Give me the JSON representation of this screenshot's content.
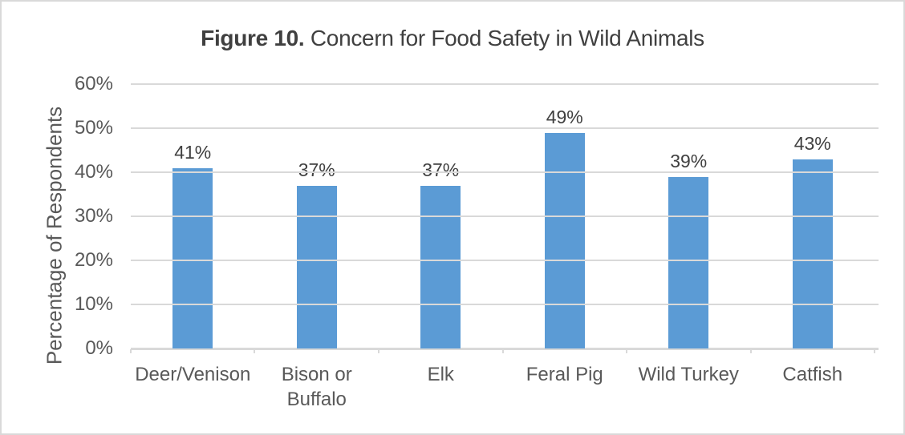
{
  "frame": {
    "background": "#FFFFFF",
    "border_color": "#D9D9D9"
  },
  "chart_data": {
    "type": "bar",
    "title_prefix": "Figure 10.",
    "title_rest": " Concern for Food Safety in Wild Animals",
    "xlabel": "",
    "ylabel": "Percentage of Respondents",
    "categories": [
      "Deer/Venison",
      "Bison or Buffalo",
      "Elk",
      "Feral Pig",
      "Wild Turkey",
      "Catfish"
    ],
    "values": [
      41,
      37,
      37,
      49,
      39,
      43
    ],
    "data_labels": [
      "41%",
      "37%",
      "37%",
      "49%",
      "39%",
      "43%"
    ],
    "ylim": [
      0,
      60
    ],
    "yticks": [
      {
        "value": 0,
        "label": "0%"
      },
      {
        "value": 10,
        "label": "10%"
      },
      {
        "value": 20,
        "label": "20%"
      },
      {
        "value": 30,
        "label": "30%"
      },
      {
        "value": 40,
        "label": "40%"
      },
      {
        "value": 50,
        "label": "50%"
      },
      {
        "value": 60,
        "label": "60%"
      }
    ],
    "grid": true,
    "legend": false,
    "bar_color": "#5B9BD5",
    "gridline_color": "#D9D9D9",
    "axis_line_color": "#D9D9D9",
    "tick_color": "#D9D9D9",
    "title_color": "#404040",
    "data_label_color": "#404040",
    "axis_text_color": "#595959"
  }
}
